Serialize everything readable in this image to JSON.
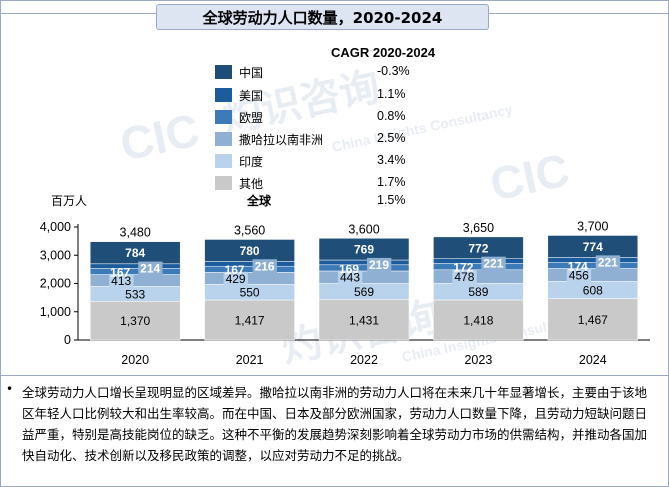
{
  "title": "全球劳动力人口数量，2020-2024",
  "legend_header": "CAGR 2020-2024",
  "unit": "百万人",
  "total_label": "全球",
  "total_cagr": "1.5%",
  "legend": [
    {
      "name": "中国",
      "cagr": "-0.3%",
      "color": "#1f4e79"
    },
    {
      "name": "美国",
      "cagr": "1.1%",
      "color": "#1d5c9c"
    },
    {
      "name": "欧盟",
      "cagr": "0.8%",
      "color": "#3d7ab8"
    },
    {
      "name": "撒哈拉以南非洲",
      "cagr": "2.5%",
      "color": "#8fb0d3"
    },
    {
      "name": "印度",
      "cagr": "3.4%",
      "color": "#b9d3ec"
    },
    {
      "name": "其他",
      "cagr": "1.7%",
      "color": "#c9c9c9"
    }
  ],
  "chart_data": {
    "type": "bar",
    "stacked": true,
    "categories": [
      "2020",
      "2021",
      "2022",
      "2023",
      "2024"
    ],
    "ylim": [
      0,
      4000
    ],
    "yticks": [
      "0",
      "1,000",
      "2,000",
      "3,000",
      "4,000"
    ],
    "ytick_values": [
      0,
      1000,
      2000,
      3000,
      4000
    ],
    "totals": [
      "3,480",
      "3,560",
      "3,600",
      "3,650",
      "3,700"
    ],
    "total_values": [
      3480,
      3560,
      3600,
      3650,
      3700
    ],
    "series": [
      {
        "name": "其他",
        "values": [
          1370,
          1417,
          1431,
          1418,
          1467
        ],
        "labels": [
          "1,370",
          "1,417",
          "1,431",
          "1,418",
          "1,467"
        ],
        "color": "#c9c9c9"
      },
      {
        "name": "印度",
        "values": [
          533,
          550,
          569,
          589,
          608
        ],
        "labels": [
          "533",
          "550",
          "569",
          "589",
          "608"
        ],
        "color": "#b9d3ec"
      },
      {
        "name": "撒哈拉以南非洲",
        "values": [
          413,
          429,
          443,
          478,
          456
        ],
        "labels": [
          "413",
          "429",
          "443",
          "478",
          "456"
        ],
        "color": "#8fb0d3"
      },
      {
        "name": "欧盟",
        "values": [
          214,
          216,
          219,
          221,
          221
        ],
        "labels": [
          "214",
          "216",
          "219",
          "221",
          "221"
        ],
        "color": "#3d7ab8"
      },
      {
        "name": "美国",
        "values": [
          167,
          167,
          169,
          172,
          174
        ],
        "labels": [
          "167",
          "167",
          "169",
          "172",
          "174"
        ],
        "color": "#1d5c9c"
      },
      {
        "name": "中国",
        "values": [
          784,
          780,
          769,
          772,
          774
        ],
        "labels": [
          "784",
          "780",
          "769",
          "772",
          "774"
        ],
        "color": "#1f4e79"
      }
    ]
  },
  "note": "全球劳动力人口增长呈现明显的区域差异。撒哈拉以南非洲的劳动力人口将在未来几十年显著增长，主要由于该地区年轻人口比例较大和出生率较高。而在中国、日本及部分欧洲国家，劳动力人口数量下降，且劳动力短缺问题日益严重，特别是高技能岗位的缺乏。这种不平衡的发展趋势深刻影响着全球劳动力市场的供需结构，并推动各国加快自动化、技术创新以及移民政策的调整，以应对劳动力不足的挑战。",
  "note_bullet": "•",
  "watermarks": [
    "灼识咨询",
    "CIC",
    "China Insights Consultancy"
  ]
}
